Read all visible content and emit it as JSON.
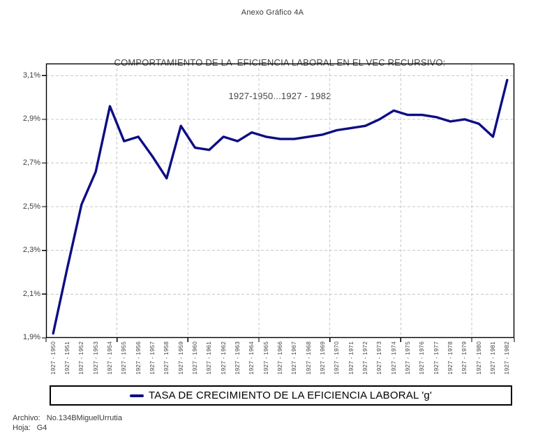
{
  "page": {
    "header": "Anexo Gráfico 4A",
    "footer": {
      "archivo_label": "Archivo:",
      "archivo_value": "No.134BMiguelUrrutia",
      "hoja_label": "Hoja:",
      "hoja_value": "G4"
    }
  },
  "colors": {
    "line": "#0d0d86",
    "grid": "#c7c7c7",
    "axis": "#000000",
    "text": "#3c3c3c"
  },
  "chart_data": {
    "type": "line",
    "title": "COMPORTAMIENTO DE LA  EFICIENCIA LABORAL EN EL VEC RECURSIVO:",
    "subtitle": "1927-1950...1927 - 1982",
    "xlabel": "",
    "ylabel": "",
    "ylim": [
      1.9,
      3.1
    ],
    "yticks": [
      {
        "label": "3,1%",
        "value": 3.1
      },
      {
        "label": "2,9%",
        "value": 2.9
      },
      {
        "label": "2,7%",
        "value": 2.7
      },
      {
        "label": "2,5%",
        "value": 2.5
      },
      {
        "label": "2,3%",
        "value": 2.3
      },
      {
        "label": "2,1%",
        "value": 2.1
      },
      {
        "label": "1,9%",
        "value": 1.9
      }
    ],
    "grid": "dashed horizontal at each y tick, dashed vertical every 5 categories",
    "legend": {
      "position": "bottom-boxed",
      "entries": [
        {
          "name": "TASA DE CRECIMIENTO DE LA EFICIENCIA LABORAL 'g'",
          "color": "#0d0d86"
        }
      ]
    },
    "categories": [
      "1927 - 1950",
      "1927 - 1951",
      "1927 - 1952",
      "1927 - 1953",
      "1927 - 1954",
      "1927 - 1955",
      "1927 - 1956",
      "1927 - 1957",
      "1927 - 1958",
      "1927 - 1959",
      "1927 - 1960",
      "1927 - 1961",
      "1927 - 1962",
      "1927 - 1963",
      "1927 - 1964",
      "1927 - 1965",
      "1927 - 1966",
      "1927 - 1967",
      "1927 - 1968",
      "1927 - 1969",
      "1927 - 1970",
      "1927 - 1971",
      "1927 - 1972",
      "1927 - 1973",
      "1927 - 1974",
      "1927 - 1975",
      "1927 - 1976",
      "1927 - 1977",
      "1927 - 1978",
      "1927 - 1979",
      "1927 - 1980",
      "1927 - 1981",
      "1927 - 1982"
    ],
    "series": [
      {
        "name": "TASA DE CRECIMIENTO DE LA EFICIENCIA LABORAL 'g'",
        "unit": "%",
        "values": [
          1.92,
          2.22,
          2.51,
          2.66,
          2.96,
          2.8,
          2.82,
          2.73,
          2.63,
          2.87,
          2.77,
          2.76,
          2.82,
          2.8,
          2.84,
          2.82,
          2.81,
          2.81,
          2.82,
          2.83,
          2.85,
          2.86,
          2.87,
          2.9,
          2.94,
          2.92,
          2.92,
          2.91,
          2.89,
          2.9,
          2.88,
          2.82,
          3.08
        ]
      }
    ]
  }
}
